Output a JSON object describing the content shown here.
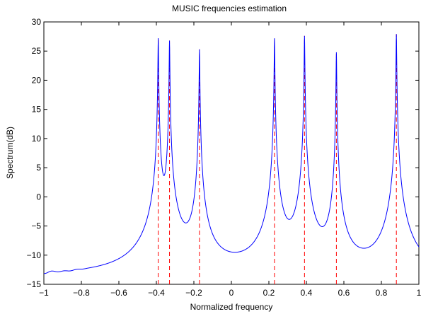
{
  "chart_data": {
    "type": "line",
    "title": "MUSIC frequencies estimation",
    "xlabel": "Normalized frequency",
    "ylabel": "Spectrum(dB)",
    "xlim": [
      -1,
      1
    ],
    "ylim": [
      -15,
      30
    ],
    "grid": false,
    "legend": "none",
    "x_ticks": [
      -1,
      -0.8,
      -0.6,
      -0.4,
      -0.2,
      0,
      0.2,
      0.4,
      0.6,
      0.8,
      1
    ],
    "x_tick_labels": [
      "−1",
      "−0.8",
      "−0.6",
      "−0.4",
      "−0.2",
      "0",
      "0.2",
      "0.4",
      "0.6",
      "0.8",
      "1"
    ],
    "y_ticks": [
      -15,
      -10,
      -5,
      0,
      5,
      10,
      15,
      20,
      25,
      30
    ],
    "y_tick_labels": [
      "−15",
      "−10",
      "−5",
      "0",
      "5",
      "10",
      "15",
      "20",
      "25",
      "30"
    ],
    "baseline_db": -13.7,
    "peaks": [
      {
        "frequency": -0.39,
        "db": 27.2
      },
      {
        "frequency": -0.33,
        "db": 26.8
      },
      {
        "frequency": -0.17,
        "db": 25.3
      },
      {
        "frequency": 0.23,
        "db": 27.2
      },
      {
        "frequency": 0.39,
        "db": 27.6
      },
      {
        "frequency": 0.56,
        "db": 24.8
      },
      {
        "frequency": 0.88,
        "db": 27.9
      }
    ],
    "true_frequencies": [
      -0.39,
      -0.33,
      -0.17,
      0.23,
      0.39,
      0.56,
      0.88
    ],
    "series": [
      {
        "role": "spectrum",
        "color": "#0000ff",
        "style": "solid"
      },
      {
        "role": "true-frequency-markers",
        "color": "#ff0000",
        "style": "dashed"
      }
    ]
  }
}
